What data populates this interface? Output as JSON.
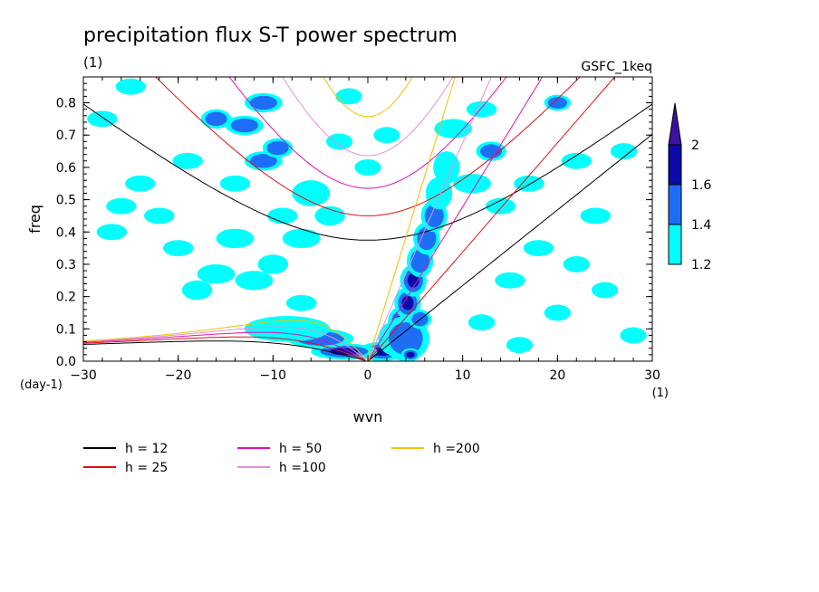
{
  "chart_data": {
    "type": "heatmap",
    "title": "precipitation flux S-T power spectrum",
    "subtitle_left": "(1)",
    "subtitle_right": "GSFC_1keq",
    "xlabel": "wvn",
    "ylabel": "freq",
    "x_unit": "(1)",
    "y_unit": "(day-1)",
    "xlim": [
      -30,
      30
    ],
    "ylim": [
      0,
      0.88
    ],
    "xticks": [
      -30,
      -20,
      -10,
      0,
      10,
      20,
      30
    ],
    "xtick_labels": [
      "−30",
      "−20",
      "−10",
      "0",
      "10",
      "20",
      "30"
    ],
    "yticks": [
      0,
      0.1,
      0.2,
      0.3,
      0.4,
      0.5,
      0.6,
      0.7,
      0.8
    ],
    "ytick_labels": [
      "0.0",
      "0.1",
      "0.2",
      "0.3",
      "0.4",
      "0.5",
      "0.6",
      "0.7",
      "0.8"
    ],
    "colorbar": {
      "levels": [
        1.2,
        1.4,
        1.6,
        2
      ],
      "labels": [
        "1.2",
        "1.4",
        "1.6",
        "2"
      ],
      "colors": [
        "#00ffff",
        "#1e6ef5",
        "#0a0aa8",
        "#3c10a0"
      ]
    },
    "legend": [
      {
        "label": "h = 12",
        "h": 12,
        "color": "#000000"
      },
      {
        "label": "h = 25",
        "h": 25,
        "color": "#e01010"
      },
      {
        "label": "h = 50",
        "h": 50,
        "color": "#e010b0"
      },
      {
        "label": "h =100",
        "h": 100,
        "color": "#e090e0"
      },
      {
        "label": "h =200",
        "h": 200,
        "color": "#f0c000"
      }
    ],
    "blobs": [
      {
        "x": 1.5,
        "y": 0.03,
        "level": 3,
        "w": 2.5,
        "h": 0.03
      },
      {
        "x": 2.5,
        "y": 0.07,
        "level": 3,
        "w": 1.4,
        "h": 0.05
      },
      {
        "x": 3.5,
        "y": 0.12,
        "level": 3,
        "w": 1.4,
        "h": 0.05
      },
      {
        "x": 4.2,
        "y": 0.18,
        "level": 3,
        "w": 1.4,
        "h": 0.05
      },
      {
        "x": 4.8,
        "y": 0.25,
        "level": 3,
        "w": 1.4,
        "h": 0.05
      },
      {
        "x": 5.5,
        "y": 0.31,
        "level": 2,
        "w": 1.4,
        "h": 0.05
      },
      {
        "x": 6.2,
        "y": 0.38,
        "level": 2,
        "w": 1.4,
        "h": 0.05
      },
      {
        "x": 7.0,
        "y": 0.45,
        "level": 2,
        "w": 1.4,
        "h": 0.05
      },
      {
        "x": 7.5,
        "y": 0.52,
        "level": 1,
        "w": 1.4,
        "h": 0.05
      },
      {
        "x": 8.3,
        "y": 0.6,
        "level": 1,
        "w": 1.4,
        "h": 0.05
      },
      {
        "x": 4.0,
        "y": 0.07,
        "level": 2,
        "w": 2.5,
        "h": 0.07
      },
      {
        "x": -2.5,
        "y": 0.03,
        "level": 3,
        "w": 3.5,
        "h": 0.025
      },
      {
        "x": -5.0,
        "y": 0.07,
        "level": 2,
        "w": 3.5,
        "h": 0.03
      },
      {
        "x": -8.5,
        "y": 0.1,
        "level": 1,
        "w": 4.5,
        "h": 0.04
      },
      {
        "x": 4.5,
        "y": 0.02,
        "level": 3,
        "w": 1.0,
        "h": 0.02
      },
      {
        "x": 5.5,
        "y": 0.13,
        "level": 2,
        "w": 1.2,
        "h": 0.03
      },
      {
        "x": -11,
        "y": 0.8,
        "level": 2,
        "w": 2.0,
        "h": 0.03
      },
      {
        "x": -13,
        "y": 0.73,
        "level": 2,
        "w": 2.0,
        "h": 0.03
      },
      {
        "x": -11,
        "y": 0.62,
        "level": 2,
        "w": 2.0,
        "h": 0.03
      },
      {
        "x": -9.5,
        "y": 0.66,
        "level": 2,
        "w": 1.6,
        "h": 0.03
      },
      {
        "x": -16,
        "y": 0.75,
        "level": 2,
        "w": 1.6,
        "h": 0.03
      },
      {
        "x": -6,
        "y": 0.52,
        "level": 1,
        "w": 2.0,
        "h": 0.04
      },
      {
        "x": -4,
        "y": 0.45,
        "level": 1,
        "w": 1.6,
        "h": 0.03
      },
      {
        "x": -7,
        "y": 0.38,
        "level": 1,
        "w": 2.0,
        "h": 0.03
      },
      {
        "x": -14,
        "y": 0.38,
        "level": 1,
        "w": 2.0,
        "h": 0.03
      },
      {
        "x": -16,
        "y": 0.27,
        "level": 1,
        "w": 2.0,
        "h": 0.03
      },
      {
        "x": -12,
        "y": 0.25,
        "level": 1,
        "w": 2.0,
        "h": 0.03
      },
      {
        "x": -18,
        "y": 0.22,
        "level": 1,
        "w": 1.6,
        "h": 0.03
      },
      {
        "x": -10,
        "y": 0.3,
        "level": 1,
        "w": 1.6,
        "h": 0.03
      },
      {
        "x": -24,
        "y": 0.55,
        "level": 1,
        "w": 1.6,
        "h": 0.025
      },
      {
        "x": -26,
        "y": 0.48,
        "level": 1,
        "w": 1.6,
        "h": 0.025
      },
      {
        "x": -22,
        "y": 0.45,
        "level": 1,
        "w": 1.6,
        "h": 0.025
      },
      {
        "x": -27,
        "y": 0.4,
        "level": 1,
        "w": 1.6,
        "h": 0.025
      },
      {
        "x": -28,
        "y": 0.75,
        "level": 1,
        "w": 1.6,
        "h": 0.025
      },
      {
        "x": -25,
        "y": 0.85,
        "level": 1,
        "w": 1.6,
        "h": 0.025
      },
      {
        "x": -19,
        "y": 0.62,
        "level": 1,
        "w": 1.6,
        "h": 0.025
      },
      {
        "x": -14,
        "y": 0.55,
        "level": 1,
        "w": 1.6,
        "h": 0.025
      },
      {
        "x": -9,
        "y": 0.45,
        "level": 1,
        "w": 1.6,
        "h": 0.025
      },
      {
        "x": -7,
        "y": 0.18,
        "level": 1,
        "w": 1.6,
        "h": 0.025
      },
      {
        "x": -20,
        "y": 0.35,
        "level": 1,
        "w": 1.6,
        "h": 0.025
      },
      {
        "x": 9,
        "y": 0.72,
        "level": 1,
        "w": 2.0,
        "h": 0.03
      },
      {
        "x": 11,
        "y": 0.55,
        "level": 1,
        "w": 2.0,
        "h": 0.03
      },
      {
        "x": 13,
        "y": 0.65,
        "level": 2,
        "w": 1.6,
        "h": 0.03
      },
      {
        "x": 12,
        "y": 0.78,
        "level": 1,
        "w": 1.6,
        "h": 0.025
      },
      {
        "x": 14,
        "y": 0.48,
        "level": 1,
        "w": 1.6,
        "h": 0.025
      },
      {
        "x": 17,
        "y": 0.55,
        "level": 1,
        "w": 1.6,
        "h": 0.025
      },
      {
        "x": 20,
        "y": 0.8,
        "level": 2,
        "w": 1.4,
        "h": 0.025
      },
      {
        "x": 22,
        "y": 0.62,
        "level": 1,
        "w": 1.6,
        "h": 0.025
      },
      {
        "x": 24,
        "y": 0.45,
        "level": 1,
        "w": 1.6,
        "h": 0.025
      },
      {
        "x": 18,
        "y": 0.35,
        "level": 1,
        "w": 1.6,
        "h": 0.025
      },
      {
        "x": 15,
        "y": 0.25,
        "level": 1,
        "w": 1.6,
        "h": 0.025
      },
      {
        "x": 20,
        "y": 0.15,
        "level": 1,
        "w": 1.4,
        "h": 0.025
      },
      {
        "x": 25,
        "y": 0.22,
        "level": 1,
        "w": 1.4,
        "h": 0.025
      },
      {
        "x": 28,
        "y": 0.08,
        "level": 1,
        "w": 1.4,
        "h": 0.025
      },
      {
        "x": 27,
        "y": 0.65,
        "level": 1,
        "w": 1.4,
        "h": 0.025
      },
      {
        "x": 16,
        "y": 0.05,
        "level": 1,
        "w": 1.4,
        "h": 0.025
      },
      {
        "x": 12,
        "y": 0.12,
        "level": 1,
        "w": 1.4,
        "h": 0.025
      },
      {
        "x": 22,
        "y": 0.3,
        "level": 1,
        "w": 1.4,
        "h": 0.025
      },
      {
        "x": -2,
        "y": 0.82,
        "level": 1,
        "w": 1.4,
        "h": 0.025
      },
      {
        "x": 2,
        "y": 0.7,
        "level": 1,
        "w": 1.4,
        "h": 0.025
      },
      {
        "x": 0,
        "y": 0.6,
        "level": 1,
        "w": 1.4,
        "h": 0.025
      },
      {
        "x": -3,
        "y": 0.68,
        "level": 1,
        "w": 1.4,
        "h": 0.025
      }
    ]
  }
}
